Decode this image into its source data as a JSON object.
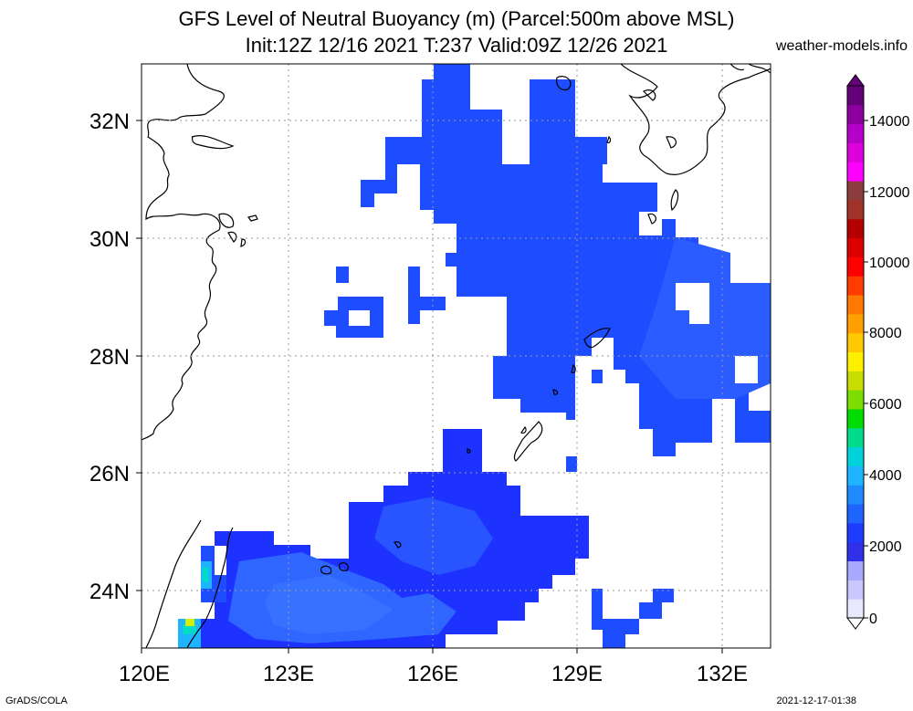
{
  "header": {
    "title_line1": "GFS Level of Neutral Buoyancy (m) (Parcel:500m above MSL)",
    "title_line2": "Init:12Z 12/16 2021 T:237 Valid:09Z 12/26 2021",
    "site": "weather-models.info"
  },
  "footer": {
    "left": "GrADS/COLA",
    "right": "2021-12-17-01:38"
  },
  "axes": {
    "lat_labels": [
      "32N",
      "30N",
      "28N",
      "26N",
      "24N"
    ],
    "lon_labels": [
      "120E",
      "123E",
      "126E",
      "129E",
      "132E"
    ]
  },
  "colorbar": {
    "labels": [
      "14000",
      "12000",
      "10000",
      "8000",
      "6000",
      "4000",
      "2000",
      "0"
    ],
    "colors": [
      "#e8e8ff",
      "#c8c8ff",
      "#a8a8ff",
      "#3030e8",
      "#1e3cff",
      "#1e64ff",
      "#1e8cff",
      "#1eb4ff",
      "#00d2dc",
      "#00dc8c",
      "#00dc00",
      "#7ddc00",
      "#c8dc00",
      "#fff000",
      "#ffc800",
      "#ffa000",
      "#ff7800",
      "#ff3c00",
      "#ff0000",
      "#dc0000",
      "#b40000",
      "#a03228",
      "#8c3c3c",
      "#ff00ff",
      "#dc00dc",
      "#b400c8",
      "#8c00a0",
      "#640078"
    ]
  },
  "map": {
    "land_color": "#000000",
    "fill_colors": {
      "deep": "#1e32ff",
      "mid": "#1e4cff",
      "light": "#2864ff",
      "pale": "#3c78ff",
      "cyan": "#00dcc8",
      "yellow": "#d2f000"
    }
  }
}
